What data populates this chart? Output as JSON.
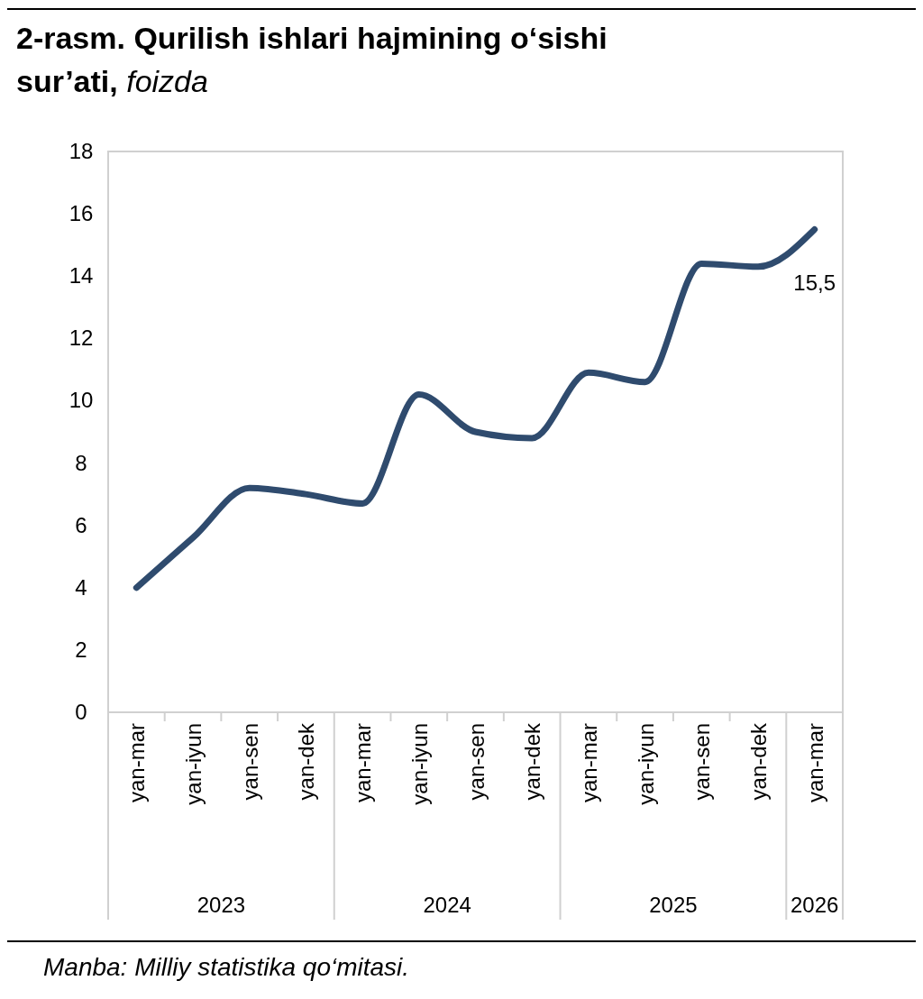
{
  "chart_data": {
    "type": "line",
    "title": "2-rasm. Qurilish ishlari  hajmining o‘sishi sur’ati, foizda",
    "categories": [
      "yan-mar",
      "yan-iyun",
      "yan-sen",
      "yan-dek",
      "yan-mar",
      "yan-iyun",
      "yan-sen",
      "yan-dek",
      "yan-mar",
      "yan-iyun",
      "yan-sen",
      "yan-dek",
      "yan-mar"
    ],
    "series": [
      {
        "color": "#2f4b6e",
        "values": [
          4.0,
          5.6,
          7.2,
          7.0,
          6.7,
          10.2,
          9.0,
          8.8,
          10.9,
          10.6,
          14.4,
          14.3,
          15.5
        ],
        "value_labels": [
          null,
          null,
          null,
          null,
          null,
          null,
          null,
          null,
          null,
          null,
          null,
          null,
          "15,5"
        ]
      }
    ],
    "ylim": [
      0,
      18
    ],
    "yticks": [
      0,
      2,
      4,
      6,
      8,
      10,
      12,
      14,
      16,
      18
    ],
    "grid": false,
    "marker": "none",
    "line_style": "solid",
    "annotations": [
      "2023",
      "2024",
      "2025",
      "2026",
      "Manba: Milliy statistika qo‘mitasi."
    ]
  }
}
